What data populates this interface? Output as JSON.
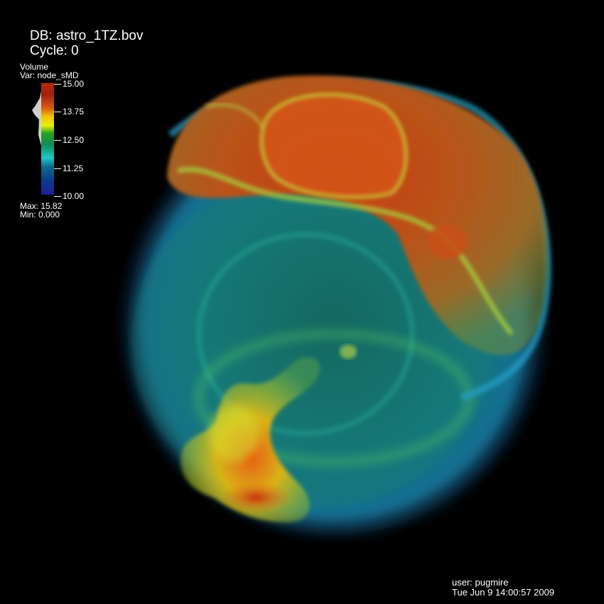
{
  "header": {
    "db": "DB: astro_1TZ.bov",
    "cycle": "Cycle: 0"
  },
  "legend": {
    "plot_type": "Volume",
    "variable": "Var: node_sMD",
    "ticks": [
      "15.00",
      "13.75",
      "12.50",
      "11.25",
      "10.00"
    ],
    "max": "Max:  15.82",
    "min": "Min:  0.000",
    "colormap": [
      "#b82c0a",
      "#d75a14",
      "#f0c40a",
      "#e6f00a",
      "#28a020",
      "#0f8c5a",
      "#1ec8c8",
      "#0a3c8c",
      "#1e1e96"
    ]
  },
  "footer": {
    "user": "user: pugmire",
    "date": "Tue Jun  9 14:00:57 2009"
  },
  "colors": {
    "background": "#000000",
    "text": "#ffffff"
  }
}
